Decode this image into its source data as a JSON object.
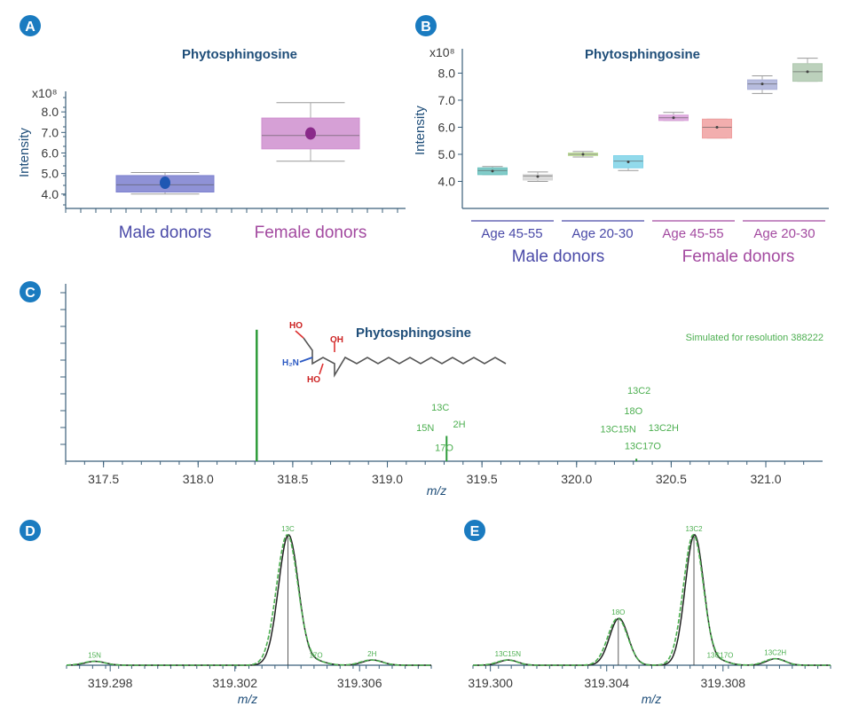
{
  "colors": {
    "accent": "#1a7bc0",
    "axis": "#3b5f7a",
    "green": "#2e9c3a",
    "male": "#4a4aa8",
    "female": "#a34aa0"
  },
  "panels": {
    "a": "A",
    "b": "B",
    "c": "C",
    "d": "D",
    "e": "E"
  },
  "compound": "Phytosphingosine",
  "simulated_note": "Simulated for resolution 388222",
  "chart_data": [
    {
      "id": "A",
      "type": "box",
      "title": "Phytosphingosine",
      "ylabel": "Intensity",
      "y_exponent_label": "x10⁸",
      "yticks": [
        "4.0",
        "5.0",
        "6.0",
        "7.0",
        "8.0"
      ],
      "ylim": [
        3.3,
        9.0
      ],
      "categories": [
        "Male donors",
        "Female donors"
      ],
      "boxes": [
        {
          "name": "Male donors",
          "min": 4.0,
          "q1": 4.1,
          "median": 4.45,
          "q3": 4.9,
          "max": 5.05,
          "mean": 4.55,
          "color": "#7b7fcf",
          "mean_color": "#1f57b3"
        },
        {
          "name": "Female donors",
          "min": 5.6,
          "q1": 6.2,
          "median": 6.85,
          "q3": 7.7,
          "max": 8.45,
          "mean": 6.95,
          "color": "#cf8fcf",
          "mean_color": "#8a2a8a"
        }
      ]
    },
    {
      "id": "B",
      "type": "box",
      "title": "Phytosphingosine",
      "ylabel": "Intensity",
      "y_exponent_label": "x10⁸",
      "yticks": [
        "4.0",
        "5.0",
        "6.0",
        "7.0",
        "8.0"
      ],
      "ylim": [
        3.0,
        8.9
      ],
      "groups": [
        {
          "label": "Male donors",
          "sublabels": [
            "Age 45-55",
            "Age 20-30"
          ]
        },
        {
          "label": "Female donors",
          "sublabels": [
            "Age 45-55",
            "Age 20-30"
          ]
        }
      ],
      "boxes": [
        {
          "min": 4.25,
          "q1": 4.25,
          "median": 4.4,
          "q3": 4.5,
          "max": 4.55,
          "mean": 4.38,
          "color": "#6cc3c0"
        },
        {
          "min": 4.0,
          "q1": 4.05,
          "median": 4.2,
          "q3": 4.25,
          "max": 4.35,
          "mean": 4.18,
          "color": "#d5d5d5"
        },
        {
          "min": 4.9,
          "q1": 4.95,
          "median": 5.0,
          "q3": 5.05,
          "max": 5.1,
          "mean": 5.0,
          "color": "#c5e3a0"
        },
        {
          "min": 4.4,
          "q1": 4.5,
          "median": 4.75,
          "q3": 4.95,
          "max": 4.95,
          "mean": 4.72,
          "color": "#7fd3e8"
        },
        {
          "min": 6.25,
          "q1": 6.25,
          "median": 6.35,
          "q3": 6.45,
          "max": 6.55,
          "mean": 6.35,
          "color": "#d9a0d9"
        },
        {
          "min": 5.6,
          "q1": 5.6,
          "median": 6.0,
          "q3": 6.3,
          "max": 6.3,
          "mean": 6.0,
          "color": "#f0a0a0"
        },
        {
          "min": 7.25,
          "q1": 7.4,
          "median": 7.6,
          "q3": 7.75,
          "max": 7.9,
          "mean": 7.6,
          "color": "#aab0d8"
        },
        {
          "min": 7.7,
          "q1": 7.7,
          "median": 8.05,
          "q3": 8.35,
          "max": 8.55,
          "mean": 8.05,
          "color": "#b0c9b0"
        }
      ]
    },
    {
      "id": "C",
      "type": "bar",
      "title": "Phytosphingosine",
      "xlabel": "m/z",
      "xticks": [
        "317.5",
        "318.0",
        "318.5",
        "319.0",
        "319.5",
        "320.0",
        "320.5",
        "321.0"
      ],
      "xlim": [
        317.3,
        321.3
      ],
      "ylim": [
        0,
        100
      ],
      "x": [
        318.3096,
        319.313,
        320.316
      ],
      "values": [
        100,
        10,
        1
      ],
      "isotope_labels": [
        {
          "text": "13C",
          "x": 319.28,
          "y": 30
        },
        {
          "text": "15N",
          "x": 319.2,
          "y": 18
        },
        {
          "text": "2H",
          "x": 319.38,
          "y": 20
        },
        {
          "text": "17O",
          "x": 319.3,
          "y": 6
        },
        {
          "text": "13C2",
          "x": 320.33,
          "y": 40
        },
        {
          "text": "18O",
          "x": 320.3,
          "y": 28
        },
        {
          "text": "13C15N",
          "x": 320.22,
          "y": 17
        },
        {
          "text": "13C2H",
          "x": 320.46,
          "y": 18
        },
        {
          "text": "13C17O",
          "x": 320.35,
          "y": 7
        }
      ]
    },
    {
      "id": "D",
      "type": "line",
      "xlabel": "m/z",
      "xticks": [
        "319.298",
        "319.302",
        "319.306"
      ],
      "xlim": [
        319.2966,
        319.3083
      ],
      "peaks": [
        {
          "label": "15N",
          "x": 319.2975,
          "h": 3
        },
        {
          "label": "13C",
          "x": 319.3037,
          "h": 100
        },
        {
          "label": "17O",
          "x": 319.3046,
          "h": 3
        },
        {
          "label": "2H",
          "x": 319.3064,
          "h": 4
        }
      ]
    },
    {
      "id": "E",
      "type": "line",
      "xlabel": "m/z",
      "xticks": [
        "319.300",
        "319.304",
        "319.308"
      ],
      "xlim": [
        319.2994,
        319.3117
      ],
      "peaks": [
        {
          "label": "13C15N",
          "x": 319.3006,
          "h": 4
        },
        {
          "label": "18O",
          "x": 319.3044,
          "h": 36
        },
        {
          "label": "13C2",
          "x": 319.307,
          "h": 100
        },
        {
          "label": "13C17O",
          "x": 319.3079,
          "h": 3
        },
        {
          "label": "13C2H",
          "x": 319.3098,
          "h": 5
        }
      ]
    }
  ]
}
